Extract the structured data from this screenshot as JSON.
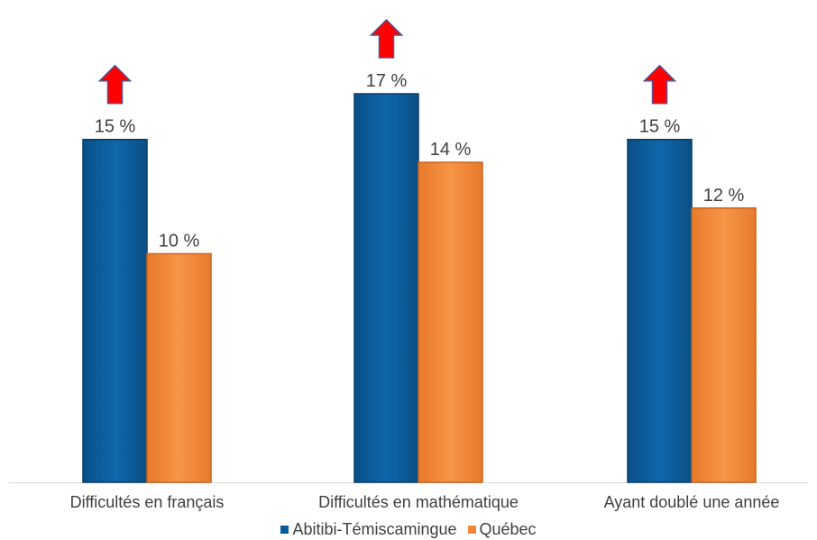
{
  "chart_data": {
    "type": "bar",
    "categories": [
      "Difficultés en français",
      "Difficultés en mathématique",
      "Ayant doublé une année"
    ],
    "series": [
      {
        "name": "Abitibi-Témiscamingue",
        "values": [
          15,
          17,
          15
        ],
        "labels": [
          "15 %",
          "17 %",
          "15 %"
        ],
        "color": "#0b5b99"
      },
      {
        "name": "Québec",
        "values": [
          10,
          14,
          12
        ],
        "labels": [
          "10 %",
          "14 %",
          "12 %"
        ],
        "color": "#f4883a"
      }
    ],
    "ylim": [
      0,
      17
    ],
    "grid": false,
    "legend_position": "bottom",
    "annotations": {
      "icon": "red-up-arrow-icon",
      "color": "#ff0000",
      "applies_to": "Abitibi-Témiscamingue"
    },
    "title": "",
    "xlabel": "",
    "ylabel": ""
  }
}
